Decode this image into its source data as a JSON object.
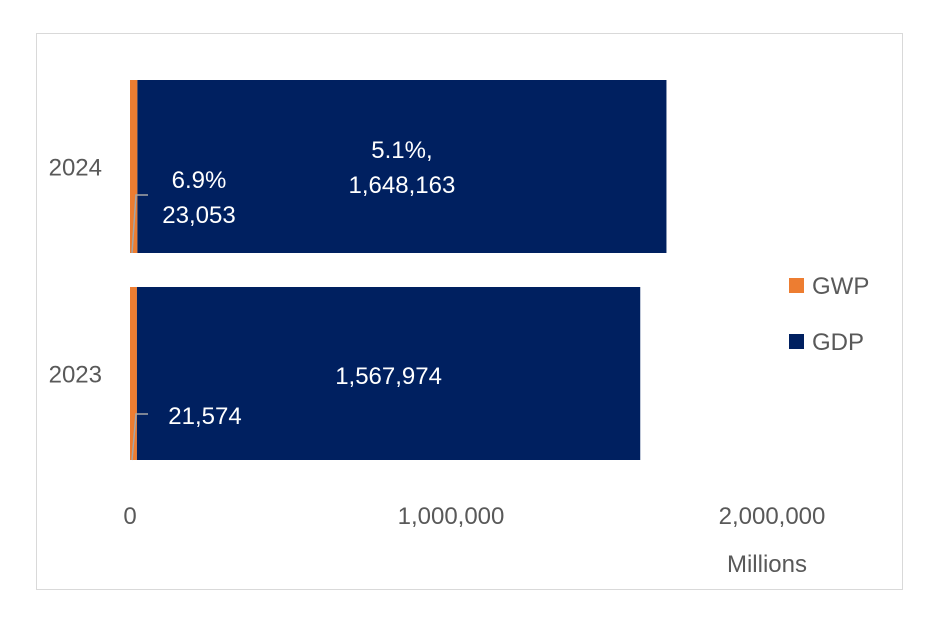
{
  "chart_data": {
    "type": "bar",
    "orientation": "horizontal",
    "stacked": true,
    "categories": [
      "2024",
      "2023"
    ],
    "series": [
      {
        "name": "GWP",
        "color": "#ed7d31",
        "values": [
          23053,
          21574
        ],
        "labels": [
          [
            "6.9%",
            "23,053"
          ],
          [
            "21,574"
          ]
        ]
      },
      {
        "name": "GDP",
        "color": "#002060",
        "values": [
          1648163,
          1567974
        ],
        "labels": [
          [
            "5.1%,",
            "1,648,163"
          ],
          [
            "1,567,974"
          ]
        ]
      }
    ],
    "xlim": [
      0,
      2000000
    ],
    "xticks": [
      0,
      1000000,
      2000000
    ],
    "xtick_labels": [
      "0",
      "1,000,000",
      "2,000,000"
    ],
    "xlabel": "Millions",
    "title": "",
    "grid": false,
    "legend_position": "right"
  }
}
